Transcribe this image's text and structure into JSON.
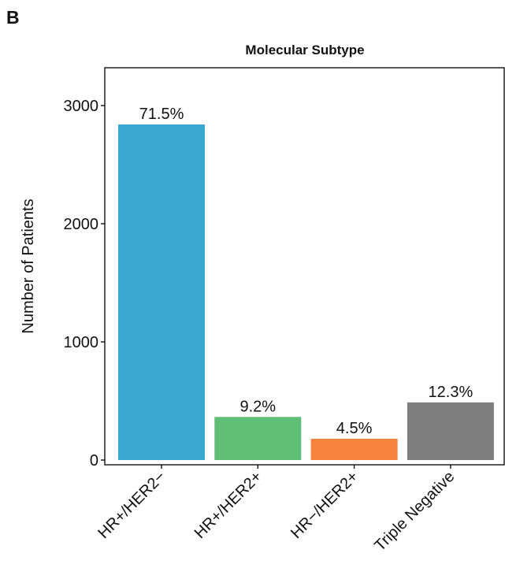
{
  "panel_label": "B",
  "chart_data": {
    "type": "bar",
    "title": "Molecular Subtype",
    "y_label": "Number of Patients",
    "categories": [
      "HR+/HER2−",
      "HR+/HER2+",
      "HR−/HER2+",
      "Triple Negative"
    ],
    "values": [
      2840,
      365,
      180,
      488
    ],
    "percent_labels": [
      "71.5%",
      "9.2%",
      "4.5%",
      "12.3%"
    ],
    "colors": [
      "#3aa9d2",
      "#5fbf76",
      "#f7843e",
      "#7f7f7f"
    ],
    "ylim": [
      -40,
      3320
    ],
    "yticks": [
      0,
      1000,
      2000,
      3000
    ],
    "grid": false
  }
}
